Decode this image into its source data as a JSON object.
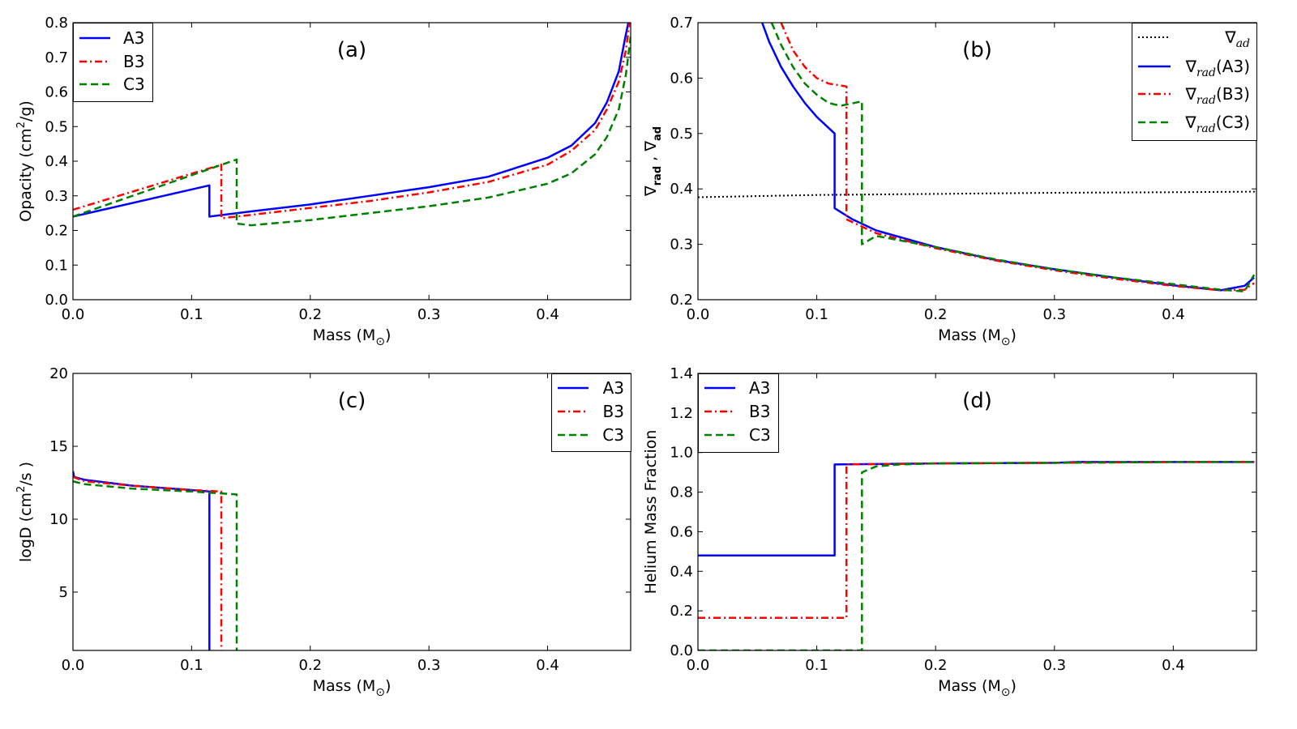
{
  "chart_data": [
    {
      "id": "a",
      "type": "line",
      "panel_label": "(a)",
      "xlabel": "Mass (M",
      "xlabel_sub": "⊙",
      "xlabel_end": ")",
      "ylabel": "Opacity (cm",
      "ylabel_sup": "2",
      "ylabel_end": "/g)",
      "xlim": [
        0,
        0.47
      ],
      "ylim": [
        0,
        0.8
      ],
      "xticks": [
        0,
        0.1,
        0.2,
        0.3,
        0.4
      ],
      "xtick_labels": [
        "0.0",
        "0.1",
        "0.2",
        "0.3",
        "0.4"
      ],
      "yticks": [
        0,
        0.1,
        0.2,
        0.3,
        0.4,
        0.5,
        0.6,
        0.7,
        0.8
      ],
      "ytick_labels": [
        "0.0",
        "0.1",
        "0.2",
        "0.3",
        "0.4",
        "0.5",
        "0.6",
        "0.7",
        "0.8"
      ],
      "legend_position": "top-left",
      "series": [
        {
          "name": "A3",
          "color": "#0000ff",
          "style": "solid",
          "x": [
            0,
            0.115,
            0.115,
            0.15,
            0.2,
            0.25,
            0.3,
            0.35,
            0.4,
            0.42,
            0.44,
            0.45,
            0.46,
            0.465,
            0.468
          ],
          "y": [
            0.24,
            0.33,
            0.24,
            0.255,
            0.275,
            0.3,
            0.325,
            0.355,
            0.41,
            0.445,
            0.51,
            0.57,
            0.66,
            0.75,
            0.8
          ]
        },
        {
          "name": "B3",
          "color": "#ff0000",
          "style": "dashdot",
          "x": [
            0,
            0.125,
            0.125,
            0.15,
            0.2,
            0.25,
            0.3,
            0.35,
            0.4,
            0.42,
            0.44,
            0.45,
            0.46,
            0.466,
            0.469
          ],
          "y": [
            0.26,
            0.39,
            0.235,
            0.245,
            0.265,
            0.285,
            0.31,
            0.34,
            0.39,
            0.43,
            0.49,
            0.55,
            0.63,
            0.72,
            0.8
          ]
        },
        {
          "name": "C3",
          "color": "#008000",
          "style": "dashed",
          "x": [
            0,
            0.138,
            0.138,
            0.15,
            0.2,
            0.25,
            0.3,
            0.35,
            0.4,
            0.42,
            0.44,
            0.45,
            0.46,
            0.466,
            0.47
          ],
          "y": [
            0.24,
            0.405,
            0.22,
            0.215,
            0.23,
            0.25,
            0.27,
            0.295,
            0.335,
            0.365,
            0.42,
            0.47,
            0.55,
            0.65,
            0.76
          ]
        }
      ]
    },
    {
      "id": "b",
      "type": "line",
      "panel_label": "(b)",
      "xlabel": "Mass (M",
      "xlabel_sub": "⊙",
      "xlabel_end": ")",
      "ylabel": "∇",
      "ylabel_sub": "rad",
      "ylabel_mid": " , ∇",
      "ylabel_sub2": "ad",
      "xlim": [
        0,
        0.47
      ],
      "ylim": [
        0.2,
        0.7
      ],
      "xticks": [
        0,
        0.1,
        0.2,
        0.3,
        0.4
      ],
      "xtick_labels": [
        "0.0",
        "0.1",
        "0.2",
        "0.3",
        "0.4"
      ],
      "yticks": [
        0.2,
        0.3,
        0.4,
        0.5,
        0.6,
        0.7
      ],
      "ytick_labels": [
        "0.2",
        "0.3",
        "0.4",
        "0.5",
        "0.6",
        "0.7"
      ],
      "legend_position": "top-right",
      "series": [
        {
          "name": "∇",
          "name_sub": "ad",
          "name_end": "",
          "color": "#000000",
          "style": "dotted",
          "x": [
            0,
            0.05,
            0.1,
            0.2,
            0.3,
            0.4,
            0.47
          ],
          "y": [
            0.385,
            0.387,
            0.389,
            0.391,
            0.393,
            0.394,
            0.395
          ]
        },
        {
          "name": "∇",
          "name_sub": "rad",
          "name_end": "(A3)",
          "color": "#0000ff",
          "style": "solid",
          "x": [
            0.054,
            0.06,
            0.07,
            0.08,
            0.09,
            0.1,
            0.115,
            0.115,
            0.13,
            0.15,
            0.2,
            0.25,
            0.3,
            0.35,
            0.4,
            0.44,
            0.46,
            0.468
          ],
          "y": [
            0.7,
            0.665,
            0.62,
            0.585,
            0.555,
            0.53,
            0.5,
            0.365,
            0.345,
            0.325,
            0.295,
            0.272,
            0.255,
            0.24,
            0.226,
            0.217,
            0.225,
            0.24
          ]
        },
        {
          "name": "∇",
          "name_sub": "rad",
          "name_end": "(B3)",
          "color": "#ff0000",
          "style": "dashdot",
          "x": [
            0.07,
            0.08,
            0.09,
            0.1,
            0.11,
            0.125,
            0.125,
            0.14,
            0.15,
            0.2,
            0.25,
            0.3,
            0.35,
            0.4,
            0.44,
            0.46,
            0.468
          ],
          "y": [
            0.7,
            0.65,
            0.62,
            0.6,
            0.59,
            0.585,
            0.345,
            0.33,
            0.32,
            0.293,
            0.271,
            0.253,
            0.238,
            0.225,
            0.217,
            0.218,
            0.23
          ]
        },
        {
          "name": "∇",
          "name_sub": "rad",
          "name_end": "(C3)",
          "color": "#008000",
          "style": "dashed",
          "x": [
            0.062,
            0.07,
            0.08,
            0.09,
            0.1,
            0.11,
            0.12,
            0.138,
            0.138,
            0.15,
            0.2,
            0.25,
            0.3,
            0.35,
            0.4,
            0.44,
            0.46,
            0.468
          ],
          "y": [
            0.7,
            0.66,
            0.62,
            0.59,
            0.57,
            0.555,
            0.55,
            0.558,
            0.3,
            0.315,
            0.295,
            0.273,
            0.255,
            0.24,
            0.228,
            0.218,
            0.215,
            0.245
          ]
        }
      ]
    },
    {
      "id": "c",
      "type": "line",
      "panel_label": "(c)",
      "xlabel": "Mass (M",
      "xlabel_sub": "⊙",
      "xlabel_end": ")",
      "ylabel": "logD (cm",
      "ylabel_sup": "2",
      "ylabel_end": "/s )",
      "xlim": [
        0,
        0.47
      ],
      "ylim": [
        1,
        20
      ],
      "xticks": [
        0,
        0.1,
        0.2,
        0.3,
        0.4
      ],
      "xtick_labels": [
        "0.0",
        "0.1",
        "0.2",
        "0.3",
        "0.4"
      ],
      "yticks": [
        5,
        10,
        15,
        20
      ],
      "ytick_labels": [
        "5",
        "10",
        "15",
        "20"
      ],
      "legend_position": "top-right",
      "series": [
        {
          "name": "A3",
          "color": "#0000ff",
          "style": "solid",
          "x": [
            0,
            0.001,
            0.01,
            0.05,
            0.1,
            0.115,
            0.115
          ],
          "y": [
            13.3,
            12.9,
            12.7,
            12.3,
            12.0,
            11.9,
            1
          ]
        },
        {
          "name": "B3",
          "color": "#ff0000",
          "style": "dashdot",
          "x": [
            0,
            0.01,
            0.05,
            0.1,
            0.125,
            0.125
          ],
          "y": [
            12.9,
            12.6,
            12.3,
            12.0,
            11.9,
            1
          ]
        },
        {
          "name": "C3",
          "color": "#008000",
          "style": "dashed",
          "x": [
            0,
            0.01,
            0.05,
            0.1,
            0.138,
            0.138
          ],
          "y": [
            12.6,
            12.4,
            12.1,
            11.9,
            11.7,
            1
          ]
        }
      ]
    },
    {
      "id": "d",
      "type": "line",
      "panel_label": "(d)",
      "xlabel": "Mass (M",
      "xlabel_sub": "⊙",
      "xlabel_end": ")",
      "ylabel": "Helium Mass Fraction",
      "xlim": [
        0,
        0.47
      ],
      "ylim": [
        0,
        1.4
      ],
      "xticks": [
        0,
        0.1,
        0.2,
        0.3,
        0.4
      ],
      "xtick_labels": [
        "0.0",
        "0.1",
        "0.2",
        "0.3",
        "0.4"
      ],
      "yticks": [
        0,
        0.2,
        0.4,
        0.6,
        0.8,
        1.0,
        1.2,
        1.4
      ],
      "ytick_labels": [
        "0.0",
        "0.2",
        "0.4",
        "0.6",
        "0.8",
        "1.0",
        "1.2",
        "1.4"
      ],
      "legend_position": "top-left",
      "series": [
        {
          "name": "A3",
          "color": "#0000ff",
          "style": "solid",
          "x": [
            0,
            0.115,
            0.115,
            0.2,
            0.3,
            0.32,
            0.4,
            0.468
          ],
          "y": [
            0.48,
            0.48,
            0.94,
            0.945,
            0.948,
            0.952,
            0.952,
            0.952
          ]
        },
        {
          "name": "B3",
          "color": "#ff0000",
          "style": "dashdot",
          "x": [
            0,
            0.125,
            0.125,
            0.2,
            0.3,
            0.4,
            0.468
          ],
          "y": [
            0.165,
            0.165,
            0.94,
            0.945,
            0.948,
            0.952,
            0.952
          ]
        },
        {
          "name": "C3",
          "color": "#008000",
          "style": "dashed",
          "x": [
            0,
            0.138,
            0.138,
            0.15,
            0.17,
            0.2,
            0.3,
            0.4,
            0.468
          ],
          "y": [
            0.0,
            0.0,
            0.9,
            0.93,
            0.94,
            0.945,
            0.948,
            0.952,
            0.952
          ]
        }
      ]
    }
  ]
}
